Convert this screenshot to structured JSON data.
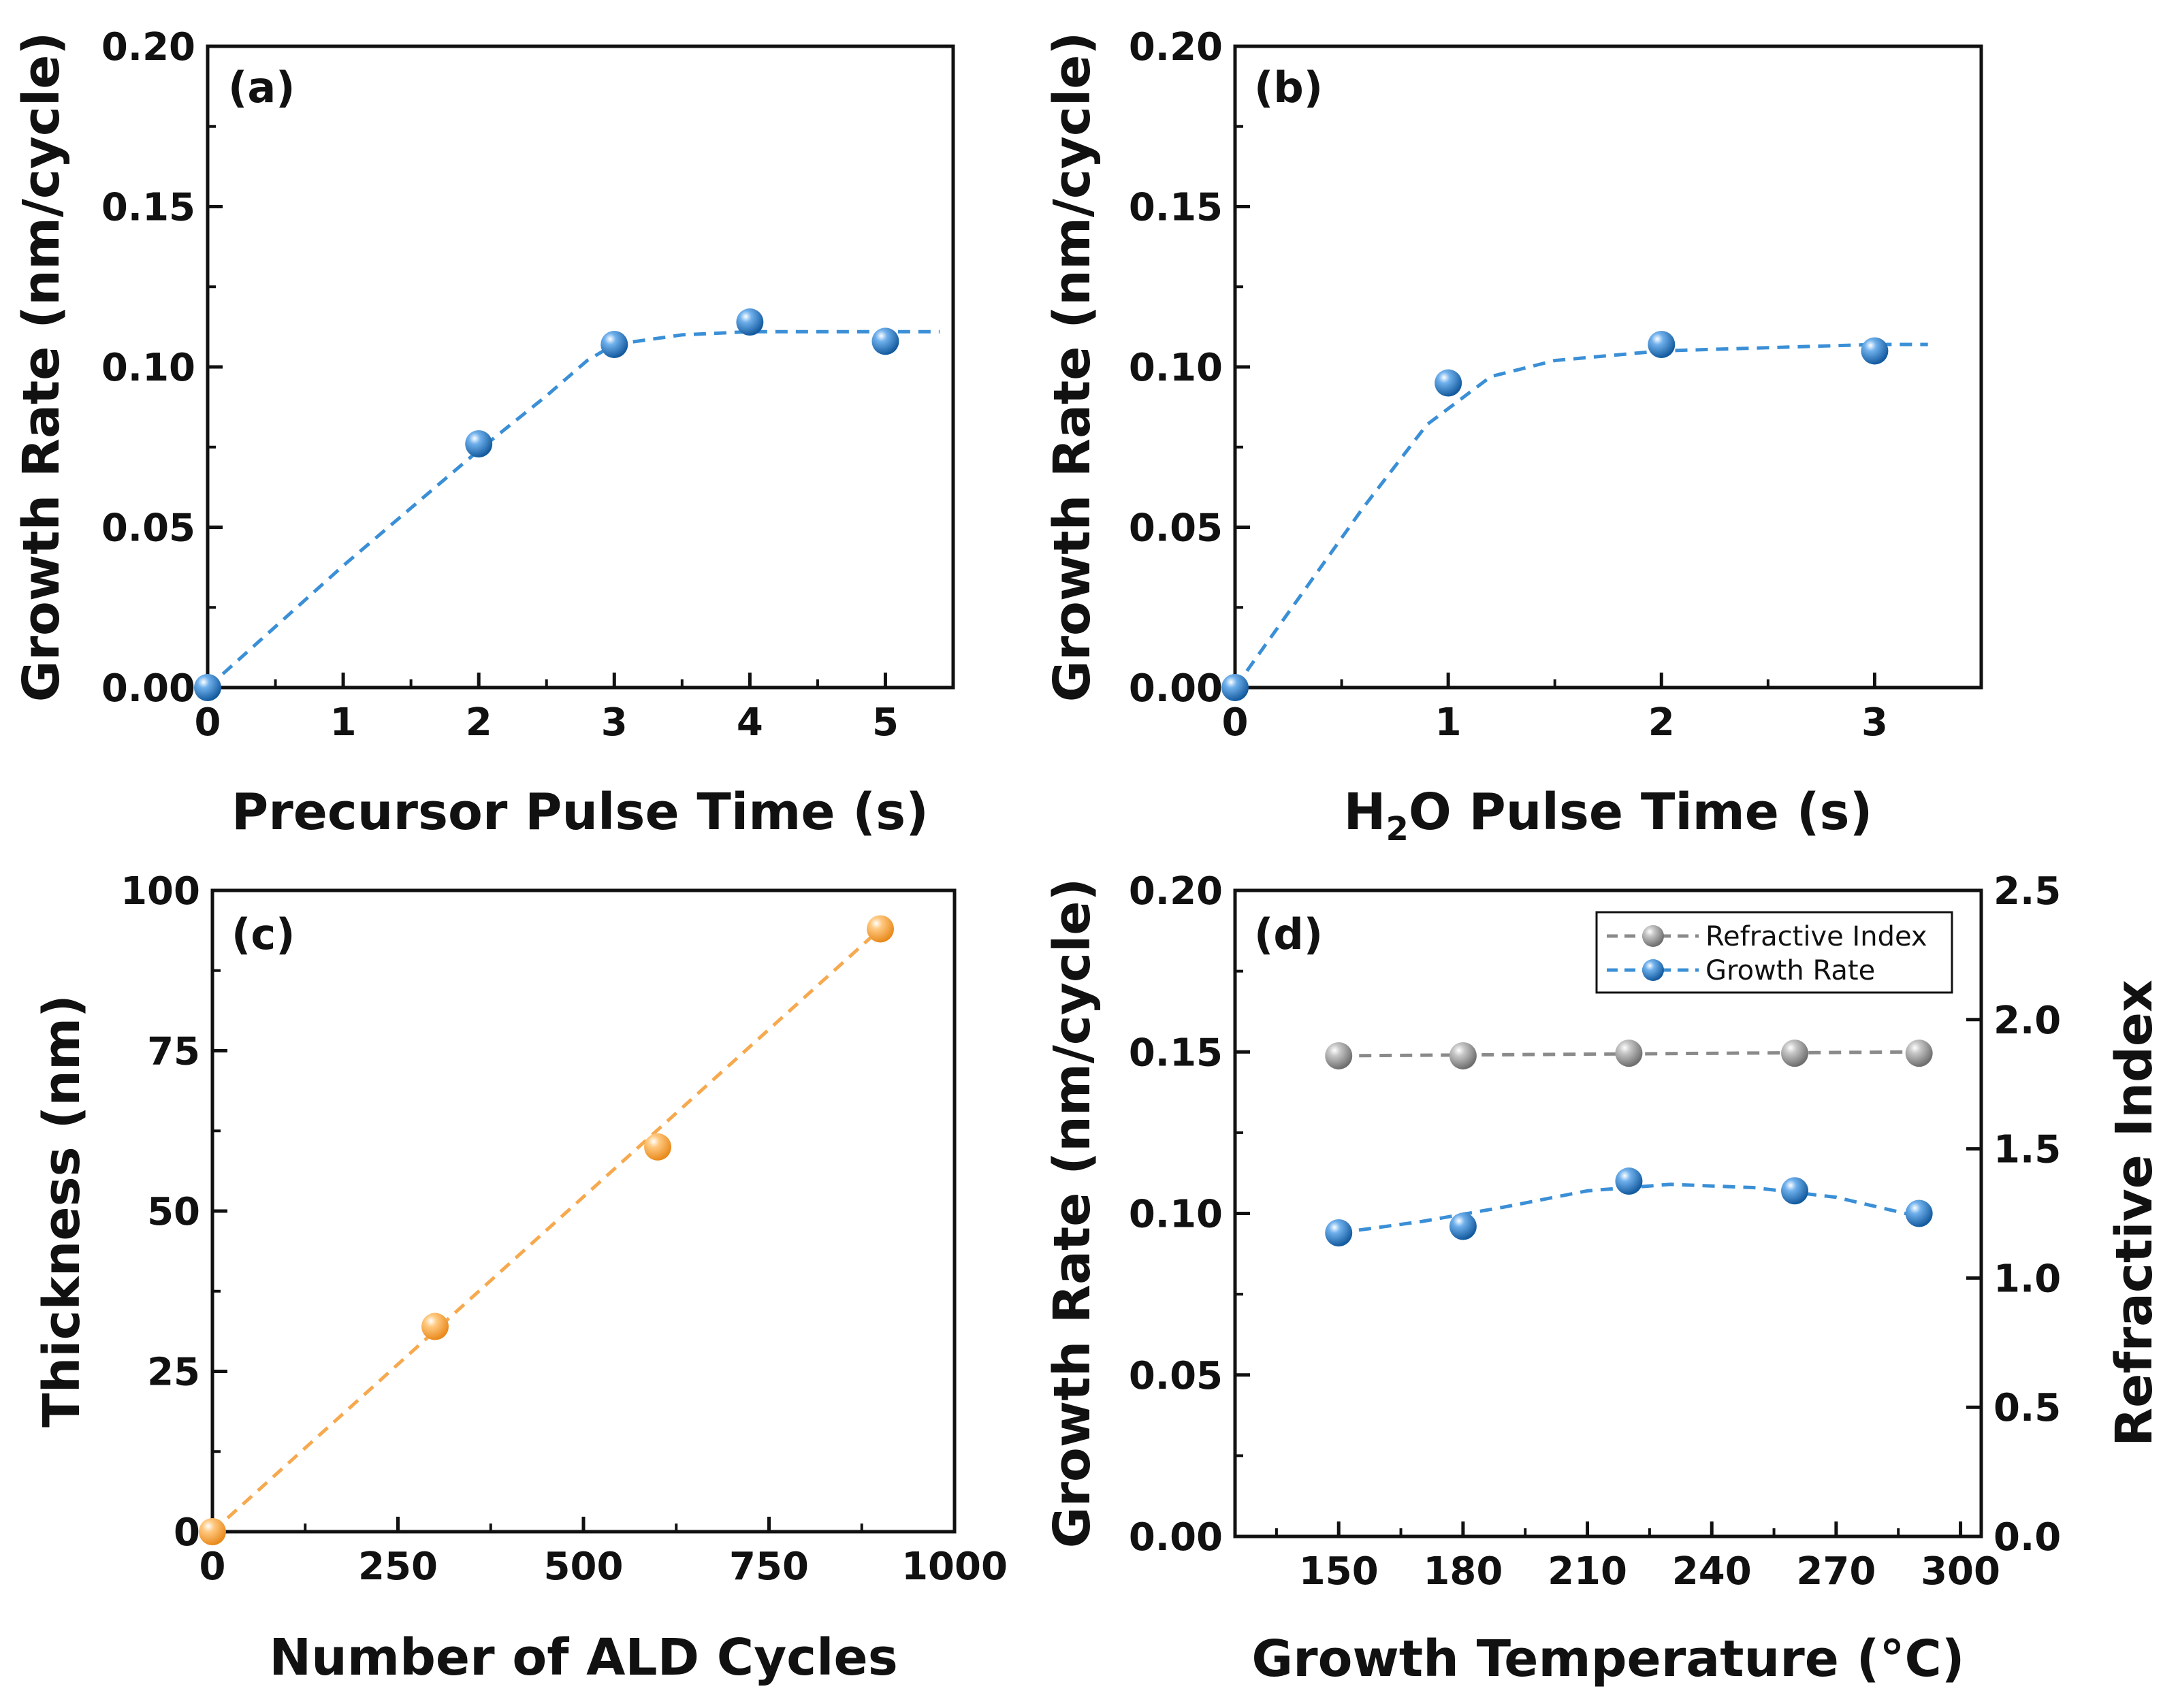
{
  "chart_data": [
    {
      "id": "a",
      "type": "scatter",
      "panel_label": "(a)",
      "xlabel": "Precursor Pulse Time (s)",
      "ylabel": "Growth Rate (nm/cycle)",
      "xlim": [
        0,
        5.5
      ],
      "ylim": [
        0,
        0.2
      ],
      "xticks": [
        0,
        1,
        2,
        3,
        4,
        5
      ],
      "xtick_labels": [
        "0",
        "1",
        "2",
        "3",
        "4",
        "5"
      ],
      "yticks": [
        0,
        0.05,
        0.1,
        0.15,
        0.2
      ],
      "ytick_labels": [
        "0.00",
        "0.05",
        "0.10",
        "0.15",
        "0.20"
      ],
      "color": "#2a78c3",
      "line_color": "#3a8fd6",
      "series": [
        {
          "name": "Growth Rate",
          "x": [
            0,
            2,
            3,
            4,
            5
          ],
          "y": [
            0.0,
            0.076,
            0.107,
            0.114,
            0.108
          ]
        }
      ],
      "fit": {
        "x": [
          0,
          1,
          2,
          2.5,
          2.8,
          3,
          3.5,
          4,
          5,
          5.4
        ],
        "y": [
          0.0,
          0.038,
          0.074,
          0.091,
          0.102,
          0.107,
          0.11,
          0.111,
          0.111,
          0.111
        ]
      }
    },
    {
      "id": "b",
      "type": "scatter",
      "panel_label": "(b)",
      "xlabel_main": "H",
      "xlabel_sub": "2",
      "xlabel_rest": "O Pulse Time (s)",
      "ylabel": "Growth Rate (nm/cycle)",
      "xlim": [
        0,
        3.5
      ],
      "ylim": [
        0,
        0.2
      ],
      "xticks": [
        0,
        1,
        2,
        3
      ],
      "xtick_labels": [
        "0",
        "1",
        "2",
        "3"
      ],
      "yticks": [
        0,
        0.05,
        0.1,
        0.15,
        0.2
      ],
      "ytick_labels": [
        "0.00",
        "0.05",
        "0.10",
        "0.15",
        "0.20"
      ],
      "color": "#2a78c3",
      "line_color": "#3a8fd6",
      "series": [
        {
          "name": "Growth Rate",
          "x": [
            0,
            1,
            2,
            3
          ],
          "y": [
            0.0,
            0.095,
            0.107,
            0.105
          ]
        }
      ],
      "fit": {
        "x": [
          0,
          0.3,
          0.6,
          0.9,
          1.2,
          1.5,
          2,
          2.5,
          3,
          3.25
        ],
        "y": [
          0.0,
          0.028,
          0.056,
          0.082,
          0.097,
          0.102,
          0.105,
          0.106,
          0.107,
          0.107
        ]
      }
    },
    {
      "id": "c",
      "type": "scatter",
      "panel_label": "(c)",
      "xlabel": "Number of ALD Cycles",
      "ylabel": "Thickness (nm)",
      "xlim": [
        0,
        1000
      ],
      "ylim": [
        0,
        100
      ],
      "xticks": [
        0,
        250,
        500,
        750,
        1000
      ],
      "xtick_labels": [
        "0",
        "250",
        "500",
        "750",
        "1000"
      ],
      "yticks": [
        0,
        25,
        50,
        75,
        100
      ],
      "ytick_labels": [
        "0",
        "25",
        "50",
        "75",
        "100"
      ],
      "color": "#f6a94e",
      "line_color": "#f6a94e",
      "series": [
        {
          "name": "Thickness",
          "x": [
            0,
            300,
            600,
            900
          ],
          "y": [
            0,
            32,
            60,
            94
          ]
        }
      ],
      "fit": {
        "x": [
          0,
          900
        ],
        "y": [
          0,
          94
        ]
      }
    },
    {
      "id": "d",
      "type": "scatter",
      "panel_label": "(d)",
      "xlabel": "Growth Temperature (°C)",
      "ylabel": "Growth Rate (nm/cycle)",
      "ylabel_right": "Refractive Index",
      "xlim": [
        125,
        305
      ],
      "ylim": [
        0,
        0.2
      ],
      "ylim_right": [
        0,
        2.5
      ],
      "xticks": [
        150,
        180,
        210,
        240,
        270,
        300
      ],
      "xtick_labels": [
        "150",
        "180",
        "210",
        "240",
        "270",
        "300"
      ],
      "yticks": [
        0,
        0.05,
        0.1,
        0.15,
        0.2
      ],
      "ytick_labels": [
        "0.00",
        "0.05",
        "0.10",
        "0.15",
        "0.20"
      ],
      "yticks_right": [
        0,
        0.5,
        1.0,
        1.5,
        2.0,
        2.5
      ],
      "ytick_labels_right": [
        "0.0",
        "0.5",
        "1.0",
        "1.5",
        "2.0",
        "2.5"
      ],
      "legend_position": "top-right",
      "legend": [
        "Refractive Index",
        "Growth Rate"
      ],
      "series": [
        {
          "name": "Refractive Index",
          "axis": "right",
          "color": "#9a9a9a",
          "line_color": "#8a8a8a",
          "x": [
            150,
            180,
            220,
            260,
            290
          ],
          "y": [
            1.86,
            1.86,
            1.87,
            1.87,
            1.87
          ]
        },
        {
          "name": "Growth Rate",
          "axis": "left",
          "color": "#2a78c3",
          "line_color": "#3a8fd6",
          "x": [
            150,
            180,
            220,
            260,
            290
          ],
          "y": [
            0.094,
            0.096,
            0.11,
            0.107,
            0.1
          ]
        }
      ],
      "fit_right": {
        "x": [
          150,
          290
        ],
        "y": [
          1.86,
          1.875
        ]
      },
      "fit": {
        "x": [
          150,
          170,
          190,
          210,
          230,
          250,
          270,
          290
        ],
        "y": [
          0.094,
          0.0975,
          0.102,
          0.107,
          0.109,
          0.108,
          0.105,
          0.099
        ]
      }
    }
  ]
}
